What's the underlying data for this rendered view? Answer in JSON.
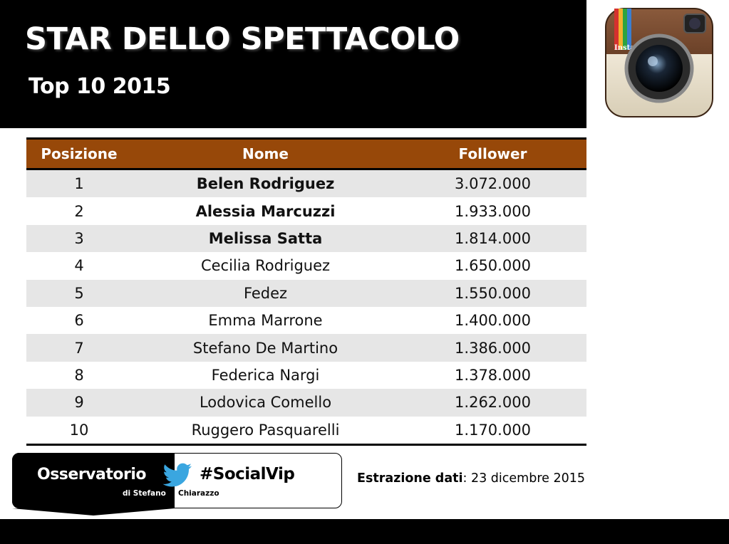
{
  "header": {
    "title": "STAR DELLO SPETTACOLO",
    "subtitle": "Top 10 2015"
  },
  "logo": {
    "icon": "instagram-camera-icon",
    "text": "Insta"
  },
  "table": {
    "headers": {
      "position": "Posizione",
      "name": "Nome",
      "followers": "Follower"
    },
    "header_color": "#974809",
    "rows": [
      {
        "position": "1",
        "name": "Belen Rodriguez",
        "followers": "3.072.000",
        "bold": true
      },
      {
        "position": "2",
        "name": "Alessia Marcuzzi",
        "followers": "1.933.000",
        "bold": true
      },
      {
        "position": "3",
        "name": "Melissa Satta",
        "followers": "1.814.000",
        "bold": true
      },
      {
        "position": "4",
        "name": "Cecilia Rodriguez",
        "followers": "1.650.000",
        "bold": false
      },
      {
        "position": "5",
        "name": "Fedez",
        "followers": "1.550.000",
        "bold": false
      },
      {
        "position": "6",
        "name": "Emma Marrone",
        "followers": "1.400.000",
        "bold": false
      },
      {
        "position": "7",
        "name": "Stefano De Martino",
        "followers": "1.386.000",
        "bold": false
      },
      {
        "position": "8",
        "name": "Federica Nargi",
        "followers": "1.378.000",
        "bold": false
      },
      {
        "position": "9",
        "name": "Lodovica Comello",
        "followers": "1.262.000",
        "bold": false
      },
      {
        "position": "10",
        "name": "Ruggero Pasquarelli",
        "followers": "1.170.000",
        "bold": false
      }
    ]
  },
  "footer": {
    "brand": "Osservatorio",
    "by_prefix": "di Stefano ",
    "by_suffix": "Chiarazzo",
    "hashtag": "#SocialVip",
    "bird_icon": "twitter-bird-icon",
    "extract_label": "Estrazione dati",
    "extract_value": ": 23 dicembre 2015"
  }
}
